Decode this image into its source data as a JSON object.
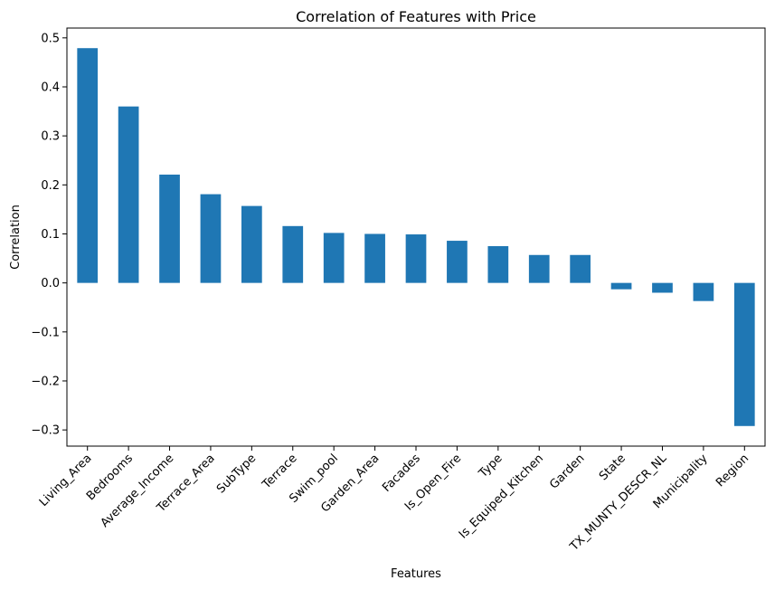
{
  "chart_data": {
    "type": "bar",
    "title": "Correlation of Features with Price",
    "xlabel": "Features",
    "ylabel": "Correlation",
    "categories": [
      "Living_Area",
      "Bedrooms",
      "Average_Income",
      "Terrace_Area",
      "SubType",
      "Terrace",
      "Swim_pool",
      "Garden_Area",
      "Facades",
      "Is_Open_Fire",
      "Type",
      "Is_Equiped_Kitchen",
      "Garden",
      "State",
      "TX_MUNTY_DESCR_NL",
      "Municipality",
      "Region"
    ],
    "values": [
      0.479,
      0.36,
      0.221,
      0.181,
      0.157,
      0.116,
      0.102,
      0.1,
      0.099,
      0.086,
      0.075,
      0.057,
      0.057,
      -0.013,
      -0.02,
      -0.037,
      -0.292
    ],
    "ylim": [
      -0.333,
      0.52
    ],
    "yticks": [
      -0.3,
      -0.2,
      -0.1,
      0.0,
      0.1,
      0.2,
      0.3,
      0.4,
      0.5
    ],
    "ytick_labels": [
      "−0.3",
      "−0.2",
      "−0.1",
      "0.0",
      "0.1",
      "0.2",
      "0.3",
      "0.4",
      "0.5"
    ],
    "bar_color": "#1f77b4",
    "grid": false,
    "legend": "none"
  }
}
